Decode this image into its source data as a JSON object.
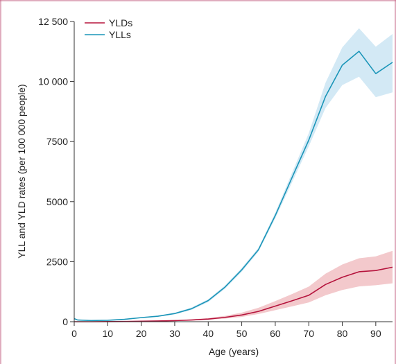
{
  "chart_data": {
    "type": "line",
    "xlabel": "Age (years)",
    "ylabel": "YLL and YLD rates (per 100 000 people)",
    "xlim": [
      0,
      95
    ],
    "ylim": [
      0,
      12500
    ],
    "x_ticks": [
      0,
      10,
      20,
      30,
      40,
      50,
      60,
      70,
      80,
      90
    ],
    "x_tick_labels": [
      "0",
      "10",
      "20",
      "30",
      "40",
      "50",
      "60",
      "70",
      "80",
      "90"
    ],
    "y_ticks": [
      0,
      2500,
      5000,
      7500,
      10000,
      12500
    ],
    "y_tick_labels": [
      "0",
      "2500",
      "5000",
      "7500",
      "10 000",
      "12 500"
    ],
    "grid": false,
    "legend_position": "top-left",
    "x": [
      0,
      1,
      5,
      10,
      15,
      20,
      25,
      30,
      35,
      40,
      45,
      50,
      55,
      60,
      65,
      70,
      75,
      80,
      85,
      90,
      95
    ],
    "series": [
      {
        "name": "YLDs",
        "color": "#b5133c",
        "band_color": "#f3c9cc",
        "values": [
          0,
          0,
          0,
          5,
          10,
          20,
          30,
          45,
          70,
          110,
          180,
          280,
          430,
          650,
          870,
          1100,
          1550,
          1850,
          2080,
          2130,
          2270
        ],
        "lower": [
          0,
          0,
          0,
          3,
          6,
          12,
          20,
          30,
          50,
          80,
          130,
          200,
          320,
          480,
          640,
          800,
          1100,
          1320,
          1470,
          1520,
          1600
        ],
        "upper": [
          0,
          0,
          0,
          8,
          15,
          30,
          45,
          65,
          100,
          150,
          240,
          380,
          580,
          860,
          1150,
          1460,
          2000,
          2380,
          2640,
          2720,
          2950
        ]
      },
      {
        "name": "YLLs",
        "color": "#1a95b8",
        "band_color": "#d3e9f5",
        "values": [
          130,
          70,
          50,
          60,
          100,
          170,
          230,
          340,
          540,
          880,
          1440,
          2160,
          3000,
          4420,
          6000,
          7560,
          9380,
          10680,
          11260,
          10330,
          10800
        ],
        "lower": [
          110,
          55,
          40,
          50,
          85,
          150,
          205,
          305,
          490,
          820,
          1370,
          2080,
          2920,
          4300,
          5800,
          7300,
          8900,
          9850,
          10200,
          9350,
          9550
        ],
        "upper": [
          150,
          85,
          60,
          70,
          115,
          190,
          255,
          375,
          590,
          940,
          1510,
          2240,
          3080,
          4540,
          6200,
          7850,
          9950,
          11420,
          12220,
          11450,
          11980
        ]
      }
    ]
  }
}
